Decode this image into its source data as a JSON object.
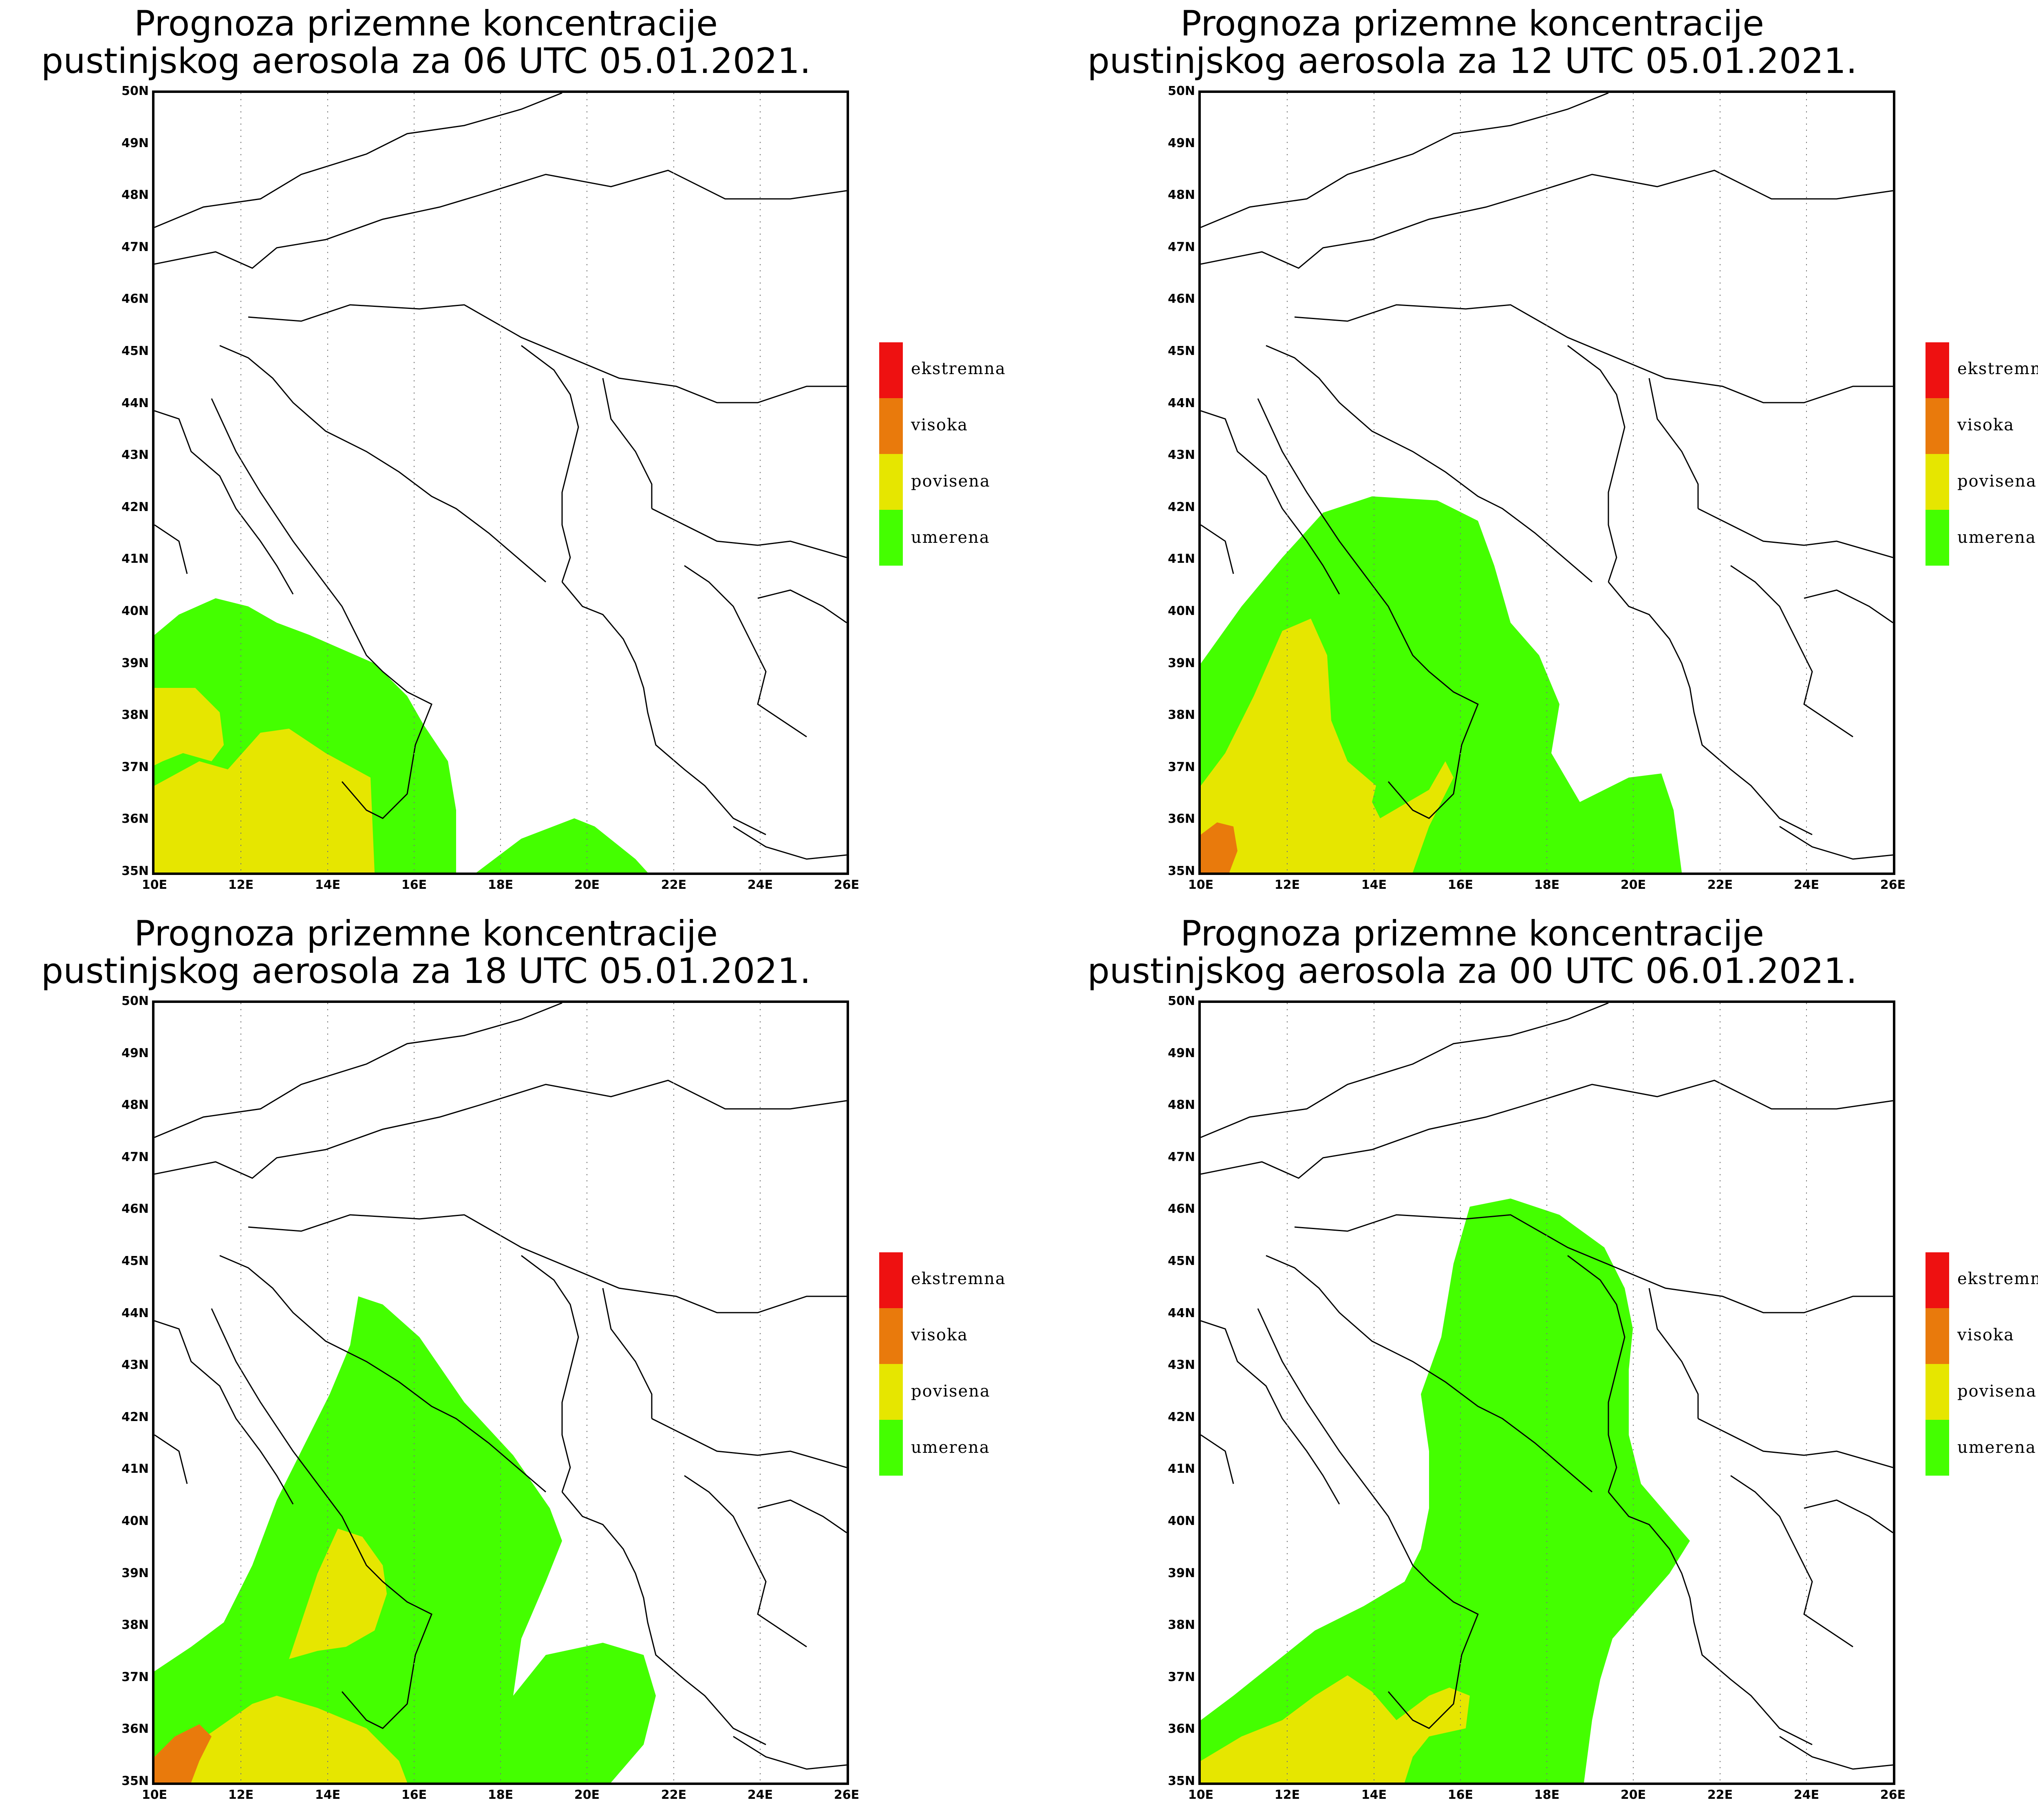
{
  "legend": {
    "items": [
      {
        "label": "ekstremna",
        "color": "#ee1111"
      },
      {
        "label": "visoka",
        "color": "#e97a0c"
      },
      {
        "label": "povisena",
        "color": "#e6e600"
      },
      {
        "label": "umerena",
        "color": "#44ff00"
      }
    ]
  },
  "axes": {
    "lat_labels": [
      "50N",
      "49N",
      "48N",
      "47N",
      "46N",
      "45N",
      "44N",
      "43N",
      "42N",
      "41N",
      "40N",
      "39N",
      "38N",
      "37N",
      "36N",
      "35N"
    ],
    "lon_labels": [
      "10E",
      "12E",
      "14E",
      "16E",
      "18E",
      "20E",
      "22E",
      "24E",
      "26E"
    ],
    "lat_range": [
      35,
      50
    ],
    "lon_range": [
      10,
      26
    ],
    "gridlines": "dotted, every 2 degrees longitude"
  },
  "panels": [
    {
      "title_line1": "Prognoza prizemne koncentracije",
      "title_line2": "pustinjskog aerosola za 06 UTC 05.01.2021."
    },
    {
      "title_line1": "Prognoza prizemne koncentracije",
      "title_line2": "pustinjskog aerosola za 12 UTC 05.01.2021."
    },
    {
      "title_line1": "Prognoza prizemne koncentracije",
      "title_line2": "pustinjskog aerosola za 18 UTC 05.01.2021."
    },
    {
      "title_line1": "Prognoza prizemne koncentracije",
      "title_line2": "pustinjskog aerosola za 00 UTC 06.01.2021."
    }
  ]
}
